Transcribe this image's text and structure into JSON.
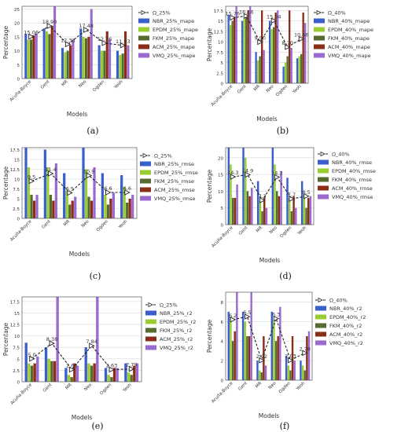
{
  "colors": {
    "NBR": "#3a5fcd",
    "EPDM": "#9acd32",
    "FKM": "#556b2f",
    "ACM": "#8b2d17",
    "VMQ": "#9b6ad0",
    "omega_line": "#222222",
    "grid": "#d8d8d8"
  },
  "chart_data": [
    {
      "type": "bar",
      "caption": "(a)",
      "categories": [
        "Acuña-Boyce",
        "Gent",
        "MR",
        "Neo",
        "Ogden",
        "Yeoh"
      ],
      "xlabel": "Models",
      "ylabel": "Percentage",
      "ylim": [
        0,
        26
      ],
      "yticks": [
        0,
        5,
        10,
        15,
        20,
        25
      ],
      "legend_position": "right",
      "series": [
        {
          "name": "NBR_25%_mape",
          "key": "NBR",
          "values": [
            16,
            18,
            11,
            18,
            12,
            10
          ]
        },
        {
          "name": "EPDM_25%_mape",
          "key": "EPDM",
          "values": [
            14,
            17,
            9.5,
            15,
            10,
            8.5
          ]
        },
        {
          "name": "FKM_25%_mape",
          "key": "FKM",
          "values": [
            14,
            16,
            10,
            14.5,
            10,
            9
          ]
        },
        {
          "name": "ACM_25%_mape",
          "key": "ACM",
          "values": [
            15.5,
            19,
            12,
            15,
            17,
            17
          ]
        },
        {
          "name": "VMQ_25%_mape",
          "key": "VMQ",
          "values": [
            16,
            26,
            14,
            25,
            14,
            12
          ]
        }
      ],
      "line": {
        "name": "Ω_25%",
        "values": [
          15.06,
          18.9,
          12.33,
          17.48,
          12.76,
          11.93
        ],
        "labels": [
          "15.06",
          "18.90",
          "12.33",
          "17.48",
          "12.76",
          "11.93"
        ]
      }
    },
    {
      "type": "bar",
      "caption": "(b)",
      "categories": [
        "Acuña-Boyce",
        "Gent",
        "MR",
        "Neo",
        "Ogden",
        "Yeoh"
      ],
      "xlabel": "Models",
      "ylabel": "Percentage",
      "ylim": [
        0,
        18.5
      ],
      "yticks": [
        0,
        2.5,
        5.0,
        7.5,
        10.0,
        12.5,
        15.0,
        17.5
      ],
      "legend_position": "right",
      "series": [
        {
          "name": "NBR_40%_mape",
          "key": "NBR",
          "values": [
            16.5,
            15,
            7.5,
            15,
            4,
            6
          ]
        },
        {
          "name": "EPDM_40%_mape",
          "key": "EPDM",
          "values": [
            14,
            15.5,
            5.5,
            13,
            5,
            6.5
          ]
        },
        {
          "name": "FKM_40%_mape",
          "key": "FKM",
          "values": [
            15,
            16,
            6.5,
            13.5,
            6.5,
            7
          ]
        },
        {
          "name": "ACM_40%_mape",
          "key": "ACM",
          "values": [
            16,
            17.5,
            17.5,
            17,
            17.5,
            17
          ]
        },
        {
          "name": "VMQ_40%_mape",
          "key": "VMQ",
          "values": [
            18.5,
            18.5,
            8,
            17.5,
            8.5,
            14.5
          ]
        }
      ],
      "line": {
        "name": "Ω_40%",
        "values": [
          15.76,
          16.16,
          9.9,
          15.04,
          8.7,
          10.66
        ],
        "labels": [
          "15.76",
          "16.16",
          "9.90",
          "15.04",
          "8.70",
          "10.66"
        ]
      }
    },
    {
      "type": "bar",
      "caption": "(c)",
      "categories": [
        "Acuña-Boyce",
        "Gent",
        "MR",
        "Neo",
        "Ogden",
        "Yeoh"
      ],
      "xlabel": "Models",
      "ylabel": "Percentage",
      "ylim": [
        0,
        18
      ],
      "yticks": [
        0,
        2.5,
        5.0,
        7.5,
        10.0,
        12.5,
        15.0,
        17.5
      ],
      "legend_position": "right",
      "series": [
        {
          "name": "NBR_25%_rmse",
          "key": "NBR",
          "values": [
            18,
            17.5,
            11.5,
            18,
            11.5,
            11
          ]
        },
        {
          "name": "EPDM_25%_rmse",
          "key": "EPDM",
          "values": [
            13,
            13,
            7,
            12.5,
            6,
            8
          ]
        },
        {
          "name": "FKM_25%_rmse",
          "key": "FKM",
          "values": [
            6,
            6,
            3.5,
            5.5,
            3.5,
            4
          ]
        },
        {
          "name": "ACM_25%_rmse",
          "key": "ACM",
          "values": [
            4.5,
            4.5,
            4.5,
            4.5,
            5,
            5
          ]
        },
        {
          "name": "VMQ_25%_rmse",
          "key": "VMQ",
          "values": [
            6,
            14,
            5.5,
            13,
            6.5,
            6
          ]
        }
      ],
      "line": {
        "name": "Ω_25%",
        "values": [
          9.5,
          11.4,
          6.5,
          10.9,
          6.6,
          6.6
        ],
        "labels": [
          "9.5",
          "11.4",
          "6.5",
          "10.9",
          "6.6",
          "6.6"
        ]
      }
    },
    {
      "type": "bar",
      "caption": "(d)",
      "categories": [
        "Acuña-Boyce",
        "Gent",
        "MR",
        "Neo",
        "Ogden",
        "Yeoh"
      ],
      "xlabel": "Models",
      "ylabel": "Percentage",
      "ylim": [
        0,
        23
      ],
      "yticks": [
        0,
        5,
        10,
        15,
        20
      ],
      "legend_position": "right",
      "series": [
        {
          "name": "NBR_40%_rmse",
          "key": "NBR",
          "values": [
            23,
            23,
            13,
            23,
            14,
            13
          ]
        },
        {
          "name": "EPDM_40%_rmse",
          "key": "EPDM",
          "values": [
            18,
            20,
            7,
            18,
            8,
            9
          ]
        },
        {
          "name": "FKM_40%_rmse",
          "key": "FKM",
          "values": [
            8,
            10,
            4,
            10,
            4,
            5
          ]
        },
        {
          "name": "ACM_40%_rmse",
          "key": "ACM",
          "values": [
            8,
            8.5,
            8,
            8.5,
            8.5,
            8
          ]
        },
        {
          "name": "VMQ_40%_rmse",
          "key": "VMQ",
          "values": [
            12,
            11,
            5,
            16,
            5,
            8.5
          ]
        }
      ],
      "line": {
        "name": "Ω_40%",
        "values": [
          14.3,
          14.9,
          7.3,
          14.2,
          7.7,
          8.5
        ],
        "labels": [
          "14.3",
          "14.9",
          "7.3",
          "14.2",
          "7.7",
          "8.5"
        ]
      }
    },
    {
      "type": "bar",
      "caption": "(e)",
      "categories": [
        "Acuña-Boyce",
        "Gent",
        "MR",
        "Neo",
        "Ogden",
        "Yeoh"
      ],
      "xlabel": "Models",
      "ylabel": "Percentage",
      "ylim": [
        0,
        18.5
      ],
      "yticks": [
        0,
        2.5,
        5.0,
        7.5,
        10.0,
        12.5,
        15.0,
        17.5
      ],
      "legend_position": "right",
      "series": [
        {
          "name": "NBR_25%_r2",
          "key": "NBR",
          "values": [
            8.5,
            7.5,
            3,
            7.5,
            3,
            4
          ]
        },
        {
          "name": "EPDM_25%_r2",
          "key": "EPDM",
          "values": [
            4,
            5,
            1.5,
            4,
            1.5,
            2
          ]
        },
        {
          "name": "FKM_25%_r2",
          "key": "FKM",
          "values": [
            3.5,
            4.5,
            1,
            3.5,
            1,
            1.5
          ]
        },
        {
          "name": "ACM_25%_r2",
          "key": "ACM",
          "values": [
            4,
            4.5,
            4,
            4,
            3,
            3.5
          ]
        },
        {
          "name": "VMQ_25%_r2",
          "key": "VMQ",
          "values": [
            5.5,
            19,
            3.5,
            18.5,
            3,
            4
          ]
        }
      ],
      "line": {
        "name": "Ω_25%",
        "values": [
          5.0,
          8.38,
          2.63,
          7.84,
          2.63,
          2.79
        ],
        "labels": [
          "5.0",
          "8.38",
          "2.63",
          "7.84",
          "2.63",
          "2.79"
        ]
      }
    },
    {
      "type": "bar",
      "caption": "(f)",
      "categories": [
        "Acuña-Boyce",
        "Gent",
        "MR",
        "Neo",
        "Ogden",
        "Yeoh"
      ],
      "xlabel": "Models",
      "ylabel": "Percentage",
      "ylim": [
        0,
        9
      ],
      "yticks": [
        0,
        2,
        4,
        6,
        8
      ],
      "legend_position": "right",
      "series": [
        {
          "name": "NBR_40%_r2",
          "key": "NBR",
          "values": [
            7,
            7,
            2,
            7,
            2.5,
            2
          ]
        },
        {
          "name": "EPDM_40%_r2",
          "key": "EPDM",
          "values": [
            6.5,
            6,
            1,
            6,
            1.5,
            1.5
          ]
        },
        {
          "name": "FKM_40%_r2",
          "key": "FKM",
          "values": [
            4,
            4.5,
            0.8,
            4,
            1,
            1
          ]
        },
        {
          "name": "ACM_40%_r2",
          "key": "ACM",
          "values": [
            5,
            4.5,
            4.5,
            4.5,
            4.5,
            4.5
          ]
        },
        {
          "name": "VMQ_40%_r2",
          "key": "VMQ",
          "values": [
            9,
            9,
            1.5,
            7.5,
            2,
            5
          ]
        }
      ],
      "line": {
        "name": "Ω_40%",
        "values": [
          6.2,
          6.5,
          2.02,
          6.3,
          2.03,
          2.78
        ],
        "labels": [
          "6.2",
          "6.5",
          "2.02",
          "6.3",
          "2.03",
          "2.78"
        ]
      }
    }
  ]
}
